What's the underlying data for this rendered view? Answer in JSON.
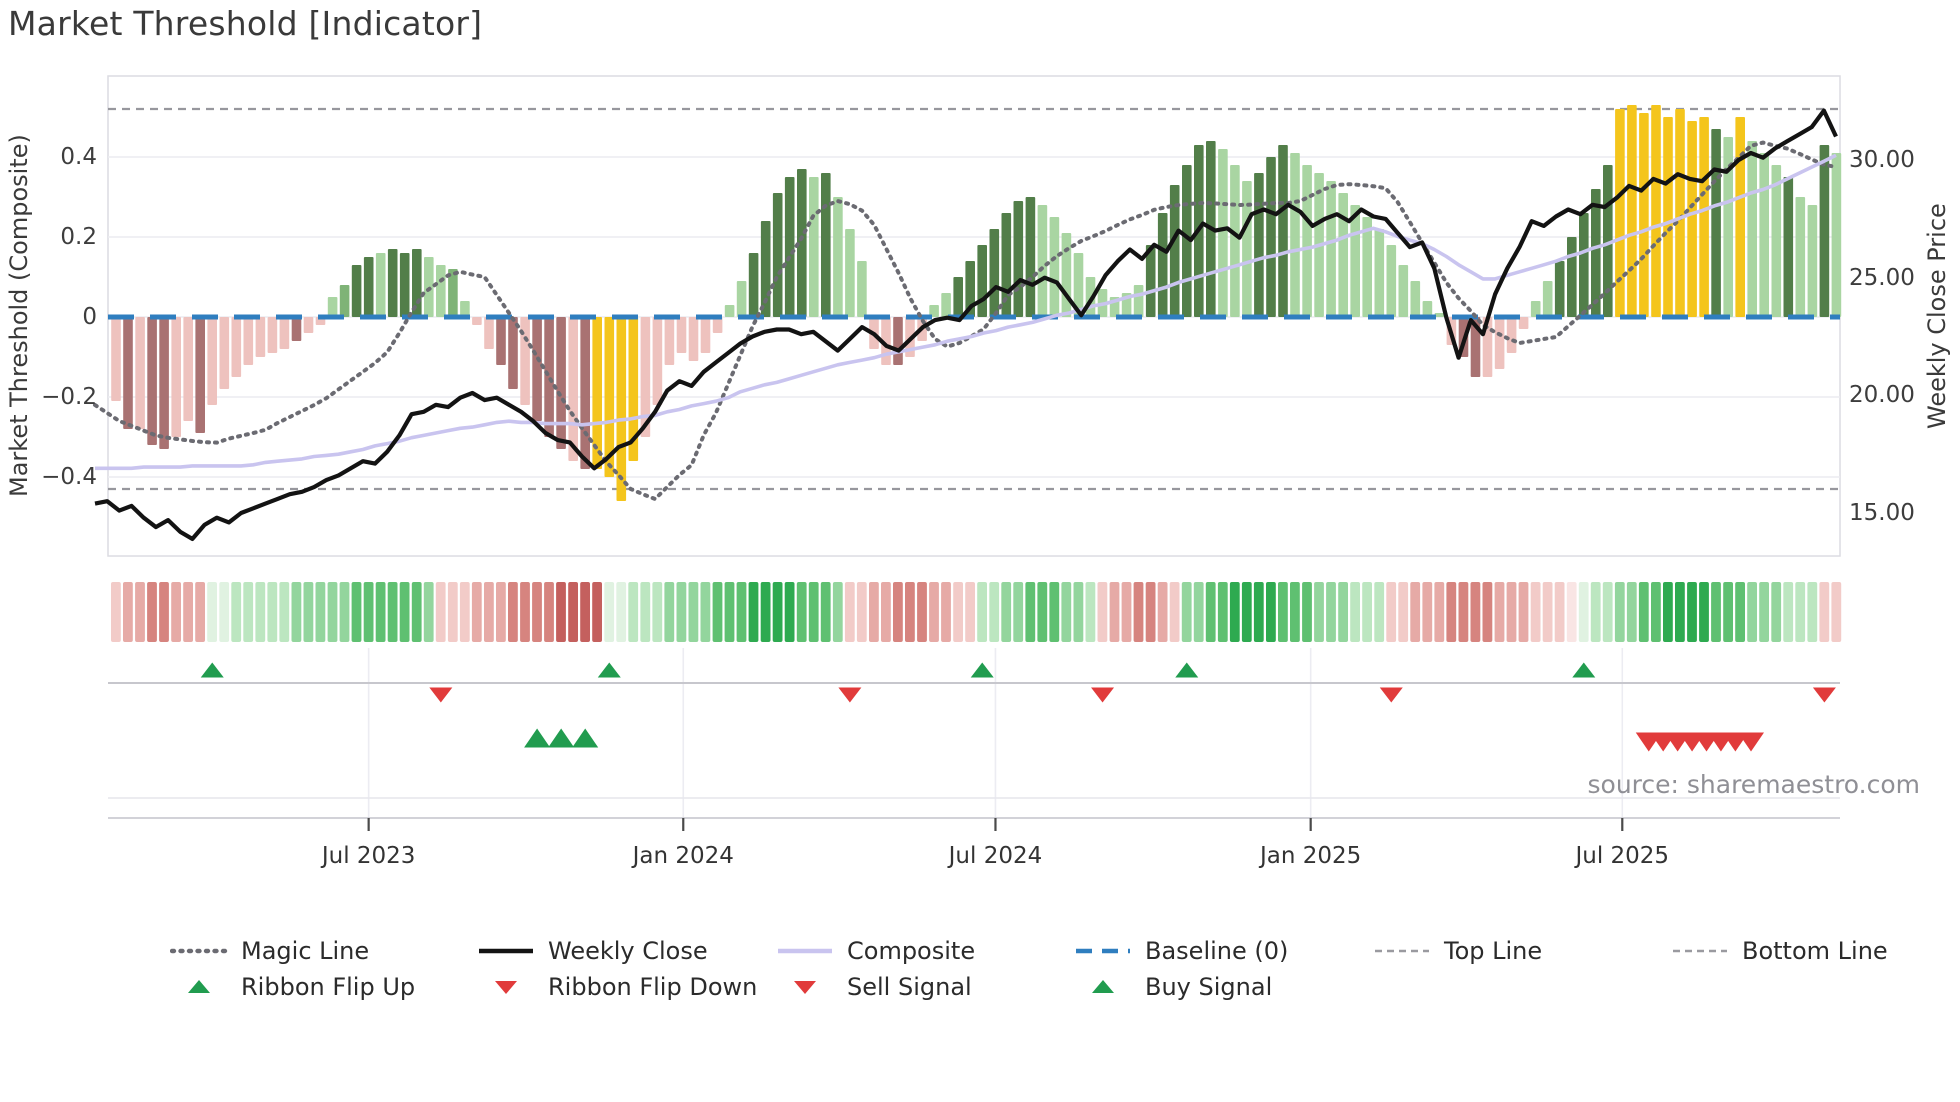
{
  "title": "Market Threshold [Indicator]",
  "source_text": "source: sharemaestro.com",
  "axes": {
    "left": {
      "title": "Market Threshold (Composite)",
      "ticks": [
        "0.4",
        "0.2",
        "0",
        "−0.2",
        "−0.4"
      ],
      "tick_values": [
        0.4,
        0.2,
        0,
        -0.2,
        -0.4
      ]
    },
    "right": {
      "title": "Weekly Close Price",
      "ticks": [
        "30.00",
        "25.00",
        "20.00",
        "15.00"
      ],
      "tick_values": [
        30,
        25,
        20,
        15
      ]
    },
    "x": {
      "ticks": [
        "Jul 2023",
        "Jan 2024",
        "Jul 2024",
        "Jan 2025",
        "Jul 2025"
      ],
      "tick_weeks": [
        21,
        47.15,
        73.1,
        99.3,
        125.2
      ]
    }
  },
  "chart_data": {
    "type": "combo: weekly composite histogram (left axis) + weekly close / composite / magic lines (right-left axes) + color ribbon + trade signal markers",
    "weeks": 144,
    "left_axis_range": [
      -0.5,
      0.56
    ],
    "right_axis_range": [
      13.5,
      32.6
    ],
    "baseline": 0,
    "top_line": 0.52,
    "bottom_line": -0.43,
    "grid": "horizontal light gridlines at left-axis ticks",
    "histogram": {
      "values": [
        -0.21,
        -0.28,
        -0.28,
        -0.32,
        -0.33,
        -0.3,
        -0.26,
        -0.29,
        -0.22,
        -0.18,
        -0.15,
        -0.12,
        -0.1,
        -0.09,
        -0.08,
        -0.06,
        -0.04,
        -0.02,
        0.05,
        0.08,
        0.13,
        0.15,
        0.16,
        0.17,
        0.16,
        0.17,
        0.15,
        0.13,
        0.12,
        0.04,
        -0.02,
        -0.08,
        -0.12,
        -0.18,
        -0.22,
        -0.26,
        -0.3,
        -0.33,
        -0.36,
        -0.38,
        -0.38,
        -0.4,
        -0.46,
        -0.36,
        -0.3,
        -0.22,
        -0.12,
        -0.09,
        -0.11,
        -0.09,
        -0.04,
        0.03,
        0.09,
        0.16,
        0.24,
        0.31,
        0.35,
        0.37,
        0.35,
        0.36,
        0.3,
        0.22,
        0.14,
        -0.08,
        -0.12,
        -0.12,
        -0.1,
        -0.06,
        0.03,
        0.06,
        0.1,
        0.14,
        0.18,
        0.22,
        0.26,
        0.29,
        0.3,
        0.28,
        0.25,
        0.21,
        0.16,
        0.1,
        0.07,
        0.05,
        0.06,
        0.08,
        0.18,
        0.26,
        0.33,
        0.38,
        0.43,
        0.44,
        0.42,
        0.38,
        0.34,
        0.36,
        0.4,
        0.43,
        0.41,
        0.38,
        0.36,
        0.34,
        0.31,
        0.28,
        0.25,
        0.22,
        0.18,
        0.13,
        0.09,
        0.04,
        0.01,
        -0.07,
        -0.1,
        -0.15,
        -0.15,
        -0.13,
        -0.09,
        -0.03,
        0.04,
        0.09,
        0.14,
        0.2,
        0.26,
        0.32,
        0.38,
        0.52,
        0.53,
        0.51,
        0.53,
        0.5,
        0.52,
        0.49,
        0.5,
        0.47,
        0.45,
        0.5,
        0.44,
        0.41,
        0.38,
        0.35,
        0.3,
        0.28,
        0.43,
        0.41
      ],
      "colors": [
        "lp",
        "dm",
        "lp",
        "dm",
        "dm",
        "lp",
        "lp",
        "dm",
        "lp",
        "lp",
        "lp",
        "lp",
        "lp",
        "lp",
        "lp",
        "dm",
        "lp",
        "lp",
        "lg",
        "mg",
        "dg",
        "dg",
        "lg",
        "dg",
        "dg",
        "dg",
        "lg",
        "lg",
        "mg",
        "lg",
        "lp",
        "lp",
        "dm",
        "dm",
        "lp",
        "dm",
        "dm",
        "dm",
        "lp",
        "dm",
        "yl",
        "yl",
        "yl",
        "yl",
        "lp",
        "lp",
        "lp",
        "lp",
        "lp",
        "lp",
        "lp",
        "lg",
        "lg",
        "dg",
        "dg",
        "dg",
        "dg",
        "dg",
        "lg",
        "dg",
        "lg",
        "lg",
        "lg",
        "lp",
        "lp",
        "dm",
        "lp",
        "lp",
        "lg",
        "lg",
        "dg",
        "dg",
        "dg",
        "dg",
        "dg",
        "dg",
        "dg",
        "lg",
        "lg",
        "lg",
        "lg",
        "lg",
        "lg",
        "lg",
        "lg",
        "lg",
        "dg",
        "dg",
        "dg",
        "dg",
        "dg",
        "dg",
        "lg",
        "lg",
        "lg",
        "dg",
        "dg",
        "dg",
        "lg",
        "lg",
        "lg",
        "lg",
        "lg",
        "lg",
        "lg",
        "lg",
        "lg",
        "lg",
        "lg",
        "lg",
        "lg",
        "lp",
        "dm",
        "dm",
        "lp",
        "lp",
        "lp",
        "lp",
        "lg",
        "lg",
        "dg",
        "dg",
        "dg",
        "dg",
        "dg",
        "yl",
        "yl",
        "yl",
        "yl",
        "yl",
        "yl",
        "yl",
        "yl",
        "dg",
        "lg",
        "yl",
        "lg",
        "lg",
        "lg",
        "dg",
        "lg",
        "lg",
        "dg",
        "lg"
      ]
    },
    "weekly_close": [
      15.4,
      15.5,
      15.1,
      15.3,
      14.8,
      14.4,
      14.7,
      14.2,
      13.9,
      14.5,
      14.8,
      14.6,
      15.0,
      15.2,
      15.4,
      15.6,
      15.8,
      15.9,
      16.1,
      16.4,
      16.6,
      16.9,
      17.2,
      17.1,
      17.6,
      18.3,
      19.2,
      19.3,
      19.6,
      19.5,
      19.9,
      20.1,
      19.8,
      19.9,
      19.6,
      19.3,
      18.9,
      18.4,
      18.1,
      18.0,
      17.4,
      16.9,
      17.3,
      17.8,
      18.0,
      18.6,
      19.3,
      20.2,
      20.6,
      20.4,
      21.0,
      21.4,
      21.8,
      22.2,
      22.5,
      22.7,
      22.8,
      22.8,
      22.6,
      22.7,
      22.3,
      21.9,
      22.4,
      22.9,
      22.6,
      22.1,
      21.9,
      22.4,
      22.9,
      23.2,
      23.3,
      23.2,
      23.8,
      24.1,
      24.6,
      24.4,
      24.9,
      24.7,
      25.0,
      24.8,
      24.1,
      23.4,
      24.2,
      25.1,
      25.7,
      26.2,
      25.8,
      26.4,
      26.1,
      27.0,
      26.6,
      27.3,
      27.0,
      27.1,
      26.7,
      27.7,
      27.9,
      27.7,
      28.1,
      27.8,
      27.2,
      27.5,
      27.7,
      27.4,
      27.9,
      27.6,
      27.5,
      26.9,
      26.3,
      26.5,
      25.4,
      23.3,
      21.6,
      23.2,
      22.6,
      24.3,
      25.4,
      26.3,
      27.4,
      27.2,
      27.6,
      27.9,
      27.7,
      28.1,
      28.0,
      28.4,
      28.9,
      28.7,
      29.2,
      29.0,
      29.4,
      29.2,
      29.1,
      29.6,
      29.5,
      30.0,
      30.3,
      30.1,
      30.5,
      30.8,
      31.1,
      31.4,
      32.1,
      31.0
    ],
    "composite_line": [
      16.9,
      16.9,
      16.9,
      16.9,
      16.95,
      16.95,
      16.95,
      16.95,
      17.0,
      17.0,
      17.0,
      17.0,
      17.0,
      17.05,
      17.15,
      17.2,
      17.25,
      17.3,
      17.4,
      17.45,
      17.5,
      17.6,
      17.7,
      17.85,
      17.95,
      18.05,
      18.2,
      18.3,
      18.4,
      18.5,
      18.6,
      18.65,
      18.75,
      18.85,
      18.9,
      18.85,
      18.85,
      18.8,
      18.8,
      18.8,
      18.75,
      18.8,
      18.85,
      18.95,
      19.0,
      19.1,
      19.15,
      19.3,
      19.4,
      19.55,
      19.65,
      19.75,
      19.9,
      20.15,
      20.3,
      20.45,
      20.55,
      20.7,
      20.85,
      21.0,
      21.15,
      21.3,
      21.4,
      21.5,
      21.6,
      21.75,
      21.85,
      21.95,
      22.05,
      22.15,
      22.3,
      22.4,
      22.5,
      22.65,
      22.75,
      22.9,
      23.0,
      23.1,
      23.25,
      23.4,
      23.5,
      23.65,
      23.8,
      23.9,
      24.05,
      24.2,
      24.3,
      24.45,
      24.6,
      24.8,
      24.95,
      25.1,
      25.25,
      25.4,
      25.55,
      25.7,
      25.85,
      25.95,
      26.1,
      26.2,
      26.3,
      26.45,
      26.6,
      26.8,
      26.95,
      27.1,
      26.95,
      26.75,
      26.6,
      26.45,
      26.2,
      25.9,
      25.55,
      25.25,
      24.95,
      24.95,
      25.1,
      25.25,
      25.4,
      25.55,
      25.7,
      25.9,
      26.05,
      26.25,
      26.4,
      26.6,
      26.8,
      26.95,
      27.15,
      27.3,
      27.5,
      27.7,
      27.85,
      28.05,
      28.2,
      28.4,
      28.6,
      28.75,
      28.95,
      29.2,
      29.45,
      29.7,
      29.95,
      30.2
    ],
    "magic_line": [
      -0.22,
      -0.24,
      -0.26,
      -0.272,
      -0.284,
      -0.296,
      -0.302,
      -0.306,
      -0.31,
      -0.313,
      -0.314,
      -0.304,
      -0.297,
      -0.29,
      -0.282,
      -0.265,
      -0.25,
      -0.235,
      -0.22,
      -0.203,
      -0.181,
      -0.159,
      -0.137,
      -0.115,
      -0.088,
      -0.04,
      0.012,
      0.06,
      0.082,
      0.104,
      0.113,
      0.106,
      0.1,
      0.055,
      0.01,
      -0.035,
      -0.084,
      -0.135,
      -0.186,
      -0.234,
      -0.278,
      -0.32,
      -0.362,
      -0.395,
      -0.43,
      -0.443,
      -0.455,
      -0.425,
      -0.395,
      -0.37,
      -0.295,
      -0.24,
      -0.168,
      -0.096,
      -0.024,
      0.036,
      0.1,
      0.148,
      0.196,
      0.253,
      0.278,
      0.29,
      0.282,
      0.266,
      0.23,
      0.17,
      0.11,
      0.045,
      -0.01,
      -0.055,
      -0.074,
      -0.065,
      -0.048,
      -0.03,
      0.01,
      0.055,
      0.075,
      0.1,
      0.128,
      0.152,
      0.172,
      0.19,
      0.202,
      0.215,
      0.23,
      0.244,
      0.255,
      0.268,
      0.275,
      0.28,
      0.283,
      0.285,
      0.284,
      0.282,
      0.28,
      0.281,
      0.283,
      0.285,
      0.285,
      0.29,
      0.305,
      0.32,
      0.33,
      0.332,
      0.33,
      0.327,
      0.322,
      0.287,
      0.237,
      0.186,
      0.136,
      0.086,
      0.047,
      0.015,
      -0.02,
      -0.038,
      -0.053,
      -0.065,
      -0.06,
      -0.055,
      -0.05,
      -0.023,
      0.004,
      0.031,
      0.059,
      0.088,
      0.116,
      0.145,
      0.178,
      0.21,
      0.24,
      0.273,
      0.306,
      0.339,
      0.37,
      0.398,
      0.428,
      0.436,
      0.428,
      0.421,
      0.408,
      0.394,
      0.381,
      0.375
    ],
    "ribbon": [
      -2,
      -3,
      -3,
      -4,
      -4,
      -3,
      -3,
      -3,
      1,
      1,
      2,
      2,
      2,
      2,
      2,
      3,
      3,
      3,
      3,
      3,
      4,
      4,
      4,
      4,
      4,
      4,
      3,
      -2,
      -2,
      -2,
      -3,
      -3,
      -3,
      -4,
      -4,
      -4,
      -4,
      -5,
      -5,
      -5,
      -5,
      1,
      1,
      2,
      2,
      2,
      3,
      3,
      3,
      3,
      4,
      4,
      4,
      5,
      5,
      5,
      5,
      4,
      4,
      4,
      3,
      -2,
      -2,
      -3,
      -3,
      -4,
      -4,
      -4,
      -3,
      -3,
      -2,
      -2,
      2,
      2,
      3,
      3,
      4,
      4,
      4,
      3,
      3,
      2,
      -2,
      -3,
      -3,
      -4,
      -4,
      -3,
      -2,
      3,
      3,
      4,
      4,
      5,
      5,
      5,
      5,
      4,
      4,
      4,
      3,
      3,
      3,
      2,
      2,
      2,
      -2,
      -2,
      -3,
      -3,
      -3,
      -4,
      -4,
      -4,
      -4,
      -3,
      -3,
      -3,
      -2,
      -2,
      -2,
      -1,
      1,
      2,
      2,
      3,
      3,
      4,
      4,
      5,
      5,
      5,
      5,
      4,
      4,
      4,
      3,
      3,
      3,
      2,
      2,
      2,
      -2,
      -2
    ],
    "signals": {
      "ribbon_flip_up_weeks": [
        8,
        41,
        72,
        89,
        122
      ],
      "ribbon_flip_down_weeks": [
        27,
        61,
        82,
        106,
        142
      ],
      "buy_signal_weeks": [
        35,
        37,
        39
      ],
      "sell_signal_weeks": [
        127.4,
        128.6,
        129.8,
        131.0,
        132.2,
        133.4,
        134.6,
        135.9
      ]
    }
  },
  "legend": {
    "row1": [
      {
        "label": "Magic Line",
        "swatch": "dotted",
        "color": "#6b6b72"
      },
      {
        "label": "Weekly Close",
        "swatch": "solid",
        "color": "#131313"
      },
      {
        "label": "Composite",
        "swatch": "solid",
        "color": "#c9c4ef"
      },
      {
        "label": "Baseline (0)",
        "swatch": "dashed-long",
        "color": "#2f7ebf"
      },
      {
        "label": "Top Line",
        "swatch": "dashed",
        "color": "#9a9aa0"
      },
      {
        "label": "Bottom Line",
        "swatch": "dashed",
        "color": "#9a9aa0"
      }
    ],
    "row2": [
      {
        "label": "Ribbon Flip Up",
        "swatch": "tri-up",
        "color": "#219c4f"
      },
      {
        "label": "Ribbon Flip Down",
        "swatch": "tri-down",
        "color": "#e13b3b"
      },
      {
        "label": "Sell Signal",
        "swatch": "tri-down",
        "color": "#e13b3b"
      },
      {
        "label": "Buy Signal",
        "swatch": "tri-up",
        "color": "#219c4f"
      }
    ]
  },
  "colors": {
    "bar": {
      "dg": "#527e49",
      "mg": "#7fb377",
      "lg": "#a9d5a2",
      "lp": "#eec2be",
      "dm": "#a97272",
      "yl": "#f4c51c"
    },
    "ribbon_green": [
      "#e0f2e1",
      "#bce6c0",
      "#93d59d",
      "#5fc071",
      "#2eaa50"
    ],
    "ribbon_red": [
      "#f9e5e4",
      "#f2cbc8",
      "#e6aaa6",
      "#d6847f",
      "#c4605e"
    ],
    "weekly_close": "#131313",
    "composite": "#c9c4ef",
    "magic": "#6b6b72",
    "baseline": "#2f7ebf",
    "threshold_lines": "#97979d",
    "gridline": "#ebebf0",
    "signal_green": "#219c4f",
    "signal_red": "#e13b3b"
  }
}
